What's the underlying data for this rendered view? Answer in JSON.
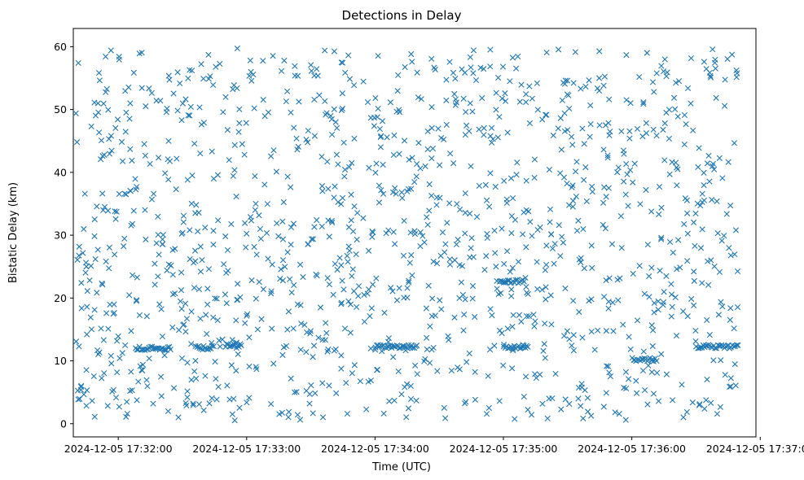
{
  "chart_data": {
    "type": "scatter",
    "title": "Detections in Delay",
    "xlabel": "Time (UTC)",
    "ylabel": "Bistatic Delay (km)",
    "x_ticks": [
      "2024-12-05 17:32:00",
      "2024-12-05 17:33:00",
      "2024-12-05 17:34:00",
      "2024-12-05 17:35:00",
      "2024-12-05 17:36:00",
      "2024-12-05 17:37:00"
    ],
    "y_ticks": [
      "0",
      "10",
      "20",
      "30",
      "40",
      "50",
      "60"
    ],
    "xlim": [
      "2024-12-05 17:31:39",
      "2024-12-05 17:36:58"
    ],
    "ylim": [
      -2.1,
      62.9
    ],
    "grid": false,
    "legend": false,
    "marker": "x",
    "colors": {
      "series": "#1f77b4"
    },
    "series": [
      {
        "x_start": "2024-12-05 17:31:40",
        "x_end": "2024-12-05 17:36:50",
        "count": 1500,
        "y_range": [
          0.5,
          59.8
        ],
        "clusters": [
          {
            "x_start": "2024-12-05 17:32:08",
            "x_end": "2024-12-05 17:32:25",
            "y": 12.0
          },
          {
            "x_start": "2024-12-05 17:32:36",
            "x_end": "2024-12-05 17:32:45",
            "y": 12.1
          },
          {
            "x_start": "2024-12-05 17:32:50",
            "x_end": "2024-12-05 17:32:58",
            "y": 12.4
          },
          {
            "x_start": "2024-12-05 17:34:00",
            "x_end": "2024-12-05 17:34:20",
            "y": 12.3
          },
          {
            "x_start": "2024-12-05 17:34:58",
            "x_end": "2024-12-05 17:35:10",
            "y": 22.6
          },
          {
            "x_start": "2024-12-05 17:35:00",
            "x_end": "2024-12-05 17:35:12",
            "y": 12.2
          },
          {
            "x_start": "2024-12-05 17:36:00",
            "x_end": "2024-12-05 17:36:12",
            "y": 10.2
          },
          {
            "x_start": "2024-12-05 17:36:30",
            "x_end": "2024-12-05 17:36:50",
            "y": 12.3
          }
        ]
      }
    ]
  }
}
